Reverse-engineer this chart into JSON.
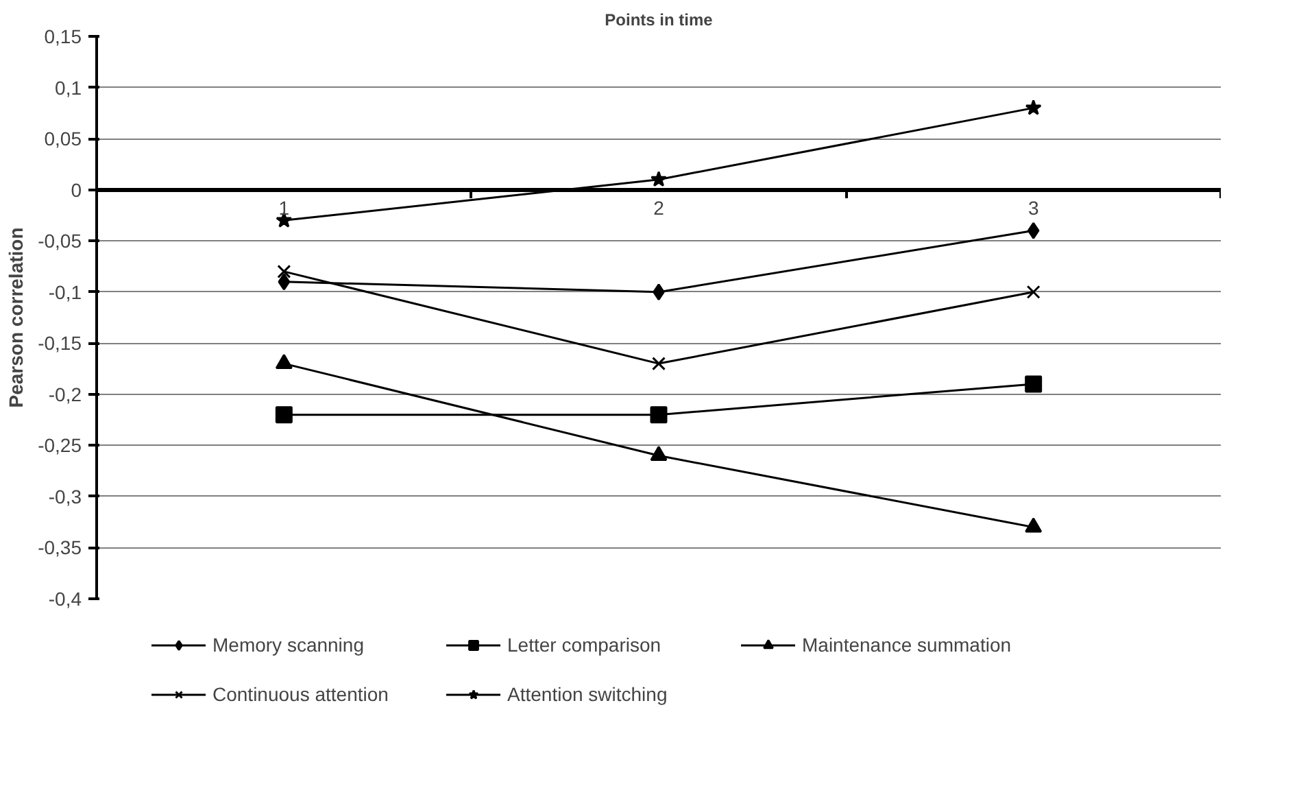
{
  "chart_data": {
    "type": "line",
    "title": "Points in time",
    "ylabel": "Pearson correlation",
    "categories": [
      "1",
      "2",
      "3"
    ],
    "series": [
      {
        "name": "Memory scanning",
        "color": "#000000",
        "marker": "diamond",
        "values": [
          -0.09,
          -0.1,
          -0.04
        ]
      },
      {
        "name": "Letter comparison",
        "color": "#000000",
        "marker": "square",
        "values": [
          -0.22,
          -0.22,
          -0.19
        ]
      },
      {
        "name": "Maintenance summation",
        "color": "#000000",
        "marker": "triangle",
        "values": [
          -0.17,
          -0.26,
          -0.33
        ]
      },
      {
        "name": "Continuous attention",
        "color": "#000000",
        "marker": "cross",
        "values": [
          -0.08,
          -0.17,
          -0.1
        ]
      },
      {
        "name": "Attention switching",
        "color": "#000000",
        "marker": "star",
        "values": [
          -0.03,
          0.01,
          0.08
        ]
      }
    ],
    "ylim": [
      -0.4,
      0.15
    ],
    "yticks": [
      {
        "value": -0.4,
        "label": "-0,4"
      },
      {
        "value": -0.35,
        "label": "-0,35"
      },
      {
        "value": -0.3,
        "label": "-0,3"
      },
      {
        "value": -0.25,
        "label": "-0,25"
      },
      {
        "value": -0.2,
        "label": "-0,2"
      },
      {
        "value": -0.15,
        "label": "-0,15"
      },
      {
        "value": -0.1,
        "label": "-0,1"
      },
      {
        "value": -0.05,
        "label": "-0,05"
      },
      0,
      {
        "value": 0.05,
        "label": "0,05"
      },
      {
        "value": 0.1,
        "label": "0,1"
      },
      {
        "value": 0.15,
        "label": "0,15"
      }
    ],
    "grid": "y",
    "legend": "bottom",
    "line_style": "solid"
  }
}
